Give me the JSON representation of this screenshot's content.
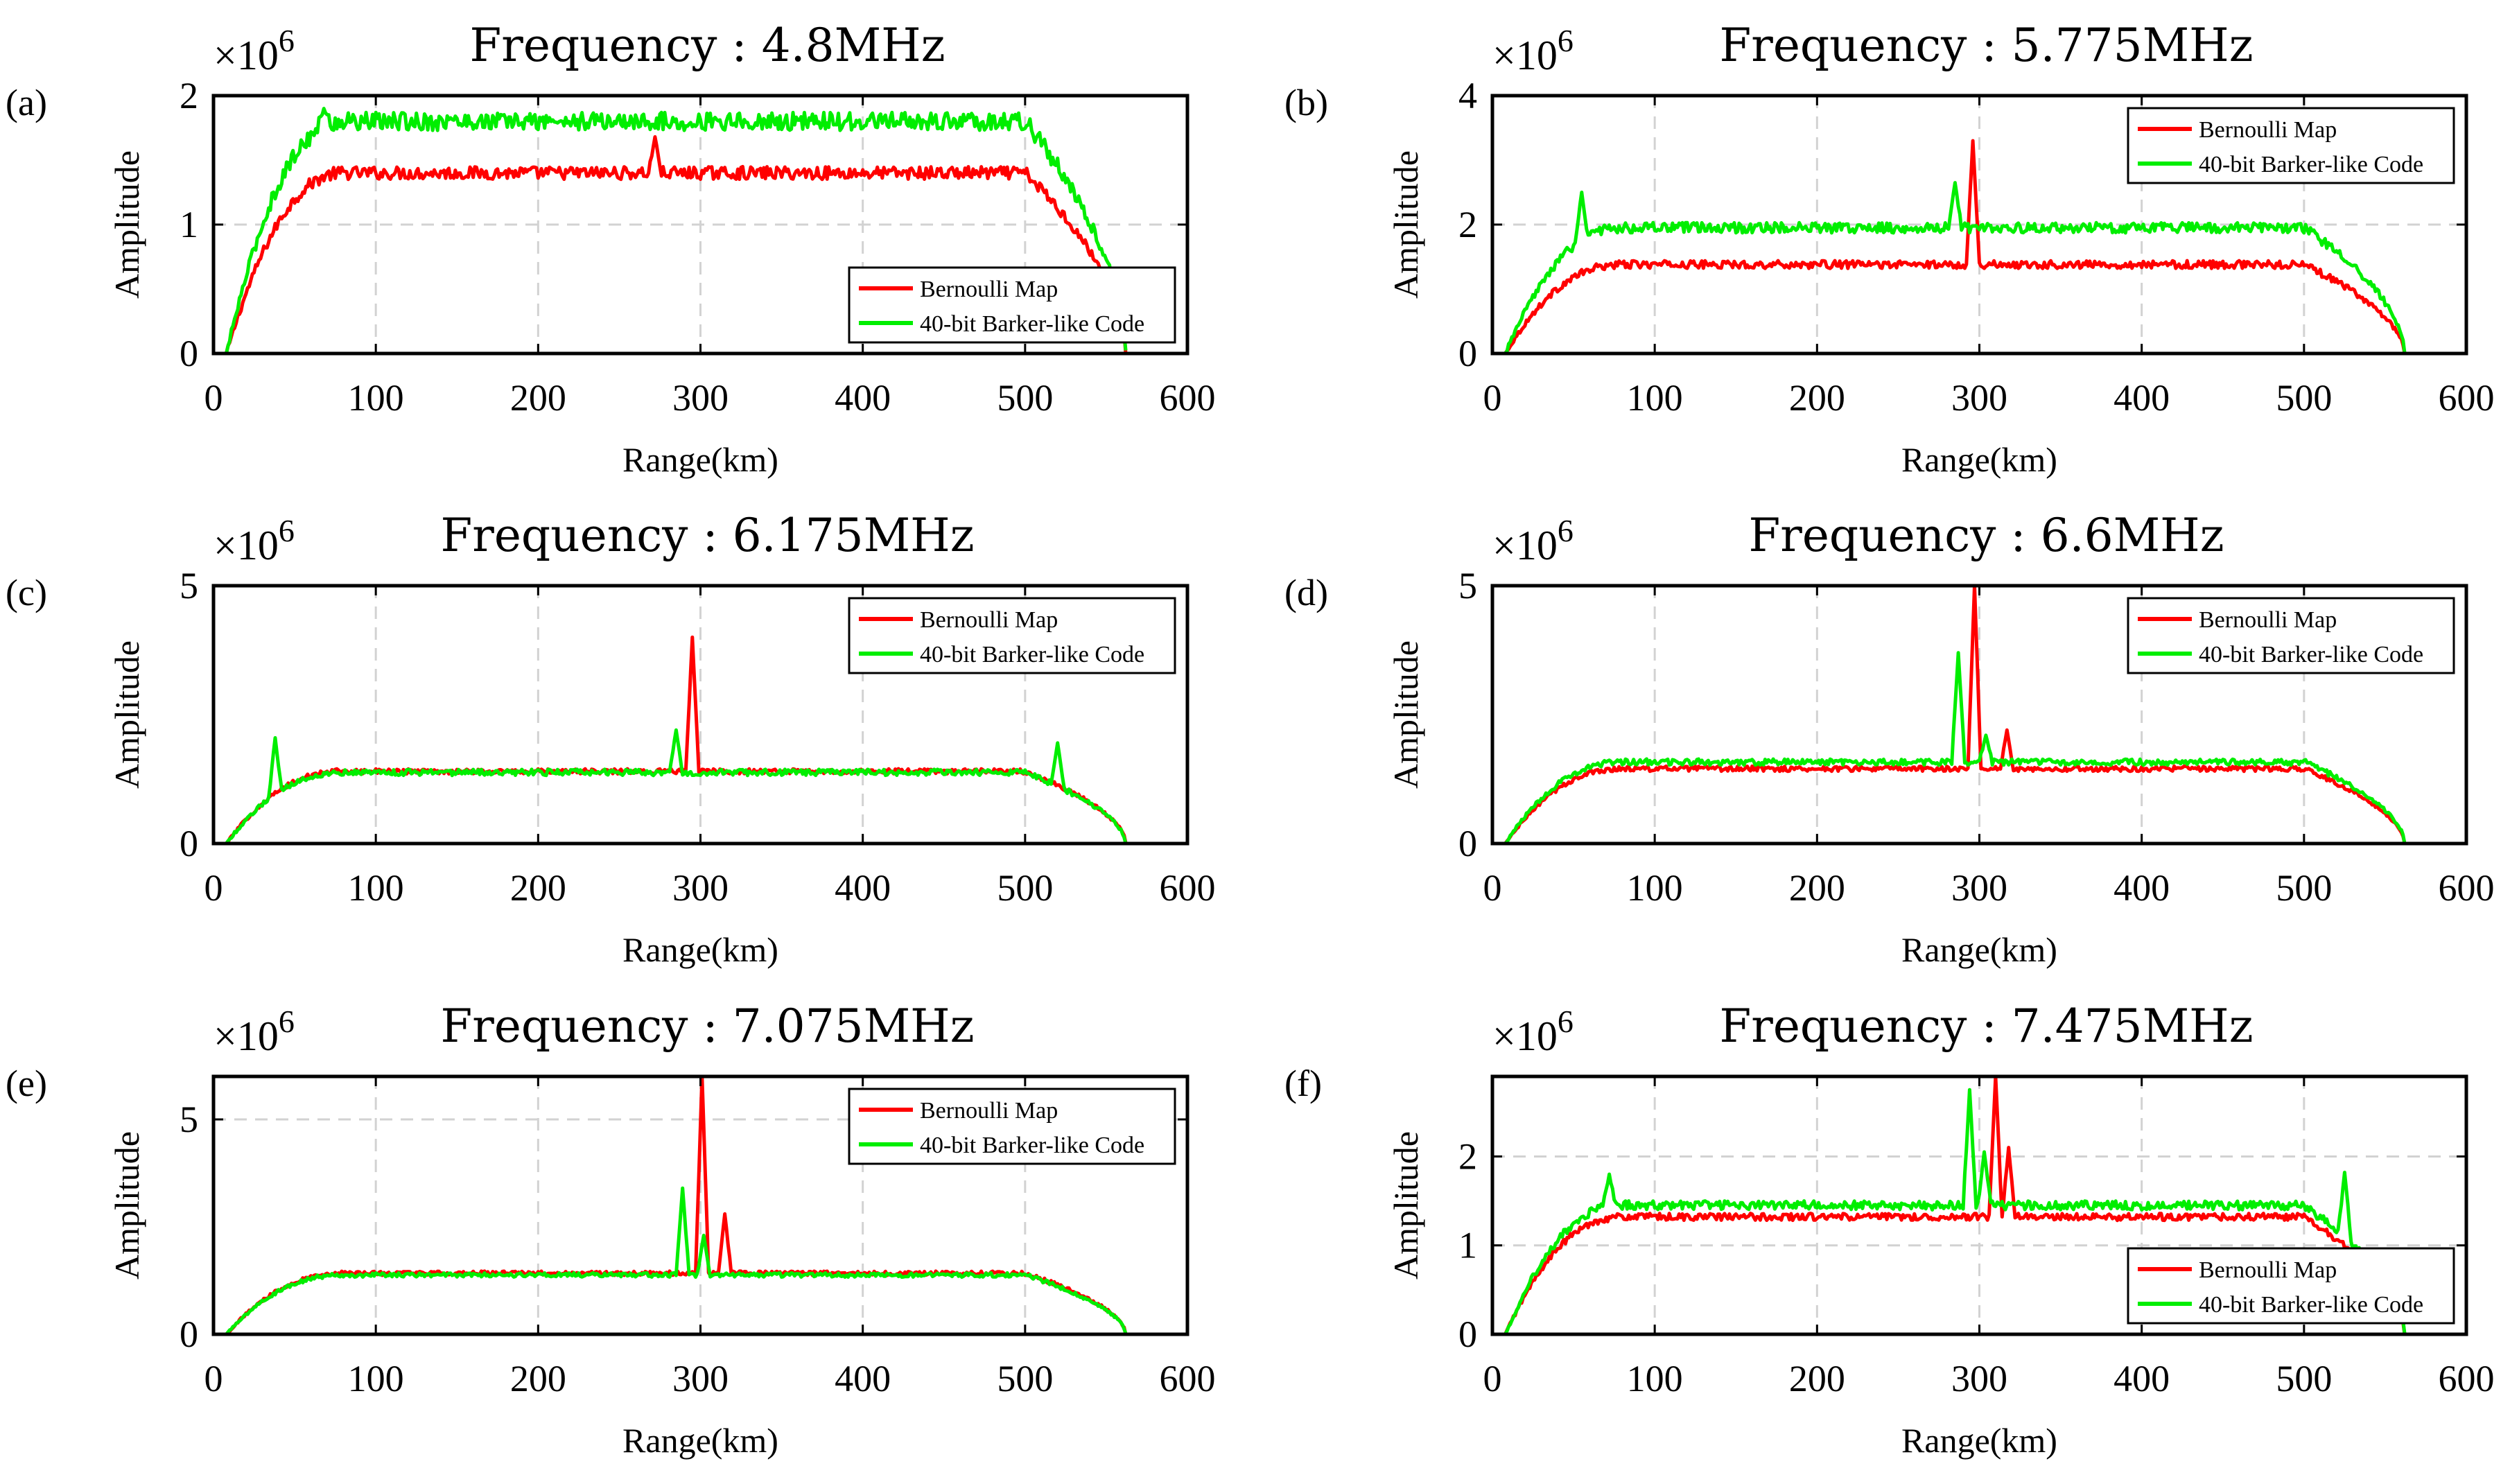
{
  "figure": {
    "colors": {
      "bernoulli": "#ff0000",
      "barker": "#00ee00"
    },
    "multiplier_base": "×10",
    "multiplier_exp": "6"
  },
  "chart_data": [
    {
      "panel": "(a)",
      "type": "line",
      "title": "Frequency : 4.8MHz",
      "xlabel": "Range(km)",
      "ylabel": "Amplitude",
      "xlim": [
        0,
        600
      ],
      "ylim": [
        0,
        2
      ],
      "xticks": [
        0,
        100,
        200,
        300,
        400,
        500,
        600
      ],
      "yticks": [
        0,
        1,
        2
      ],
      "legend_position": "bottom-right",
      "series": [
        {
          "name": "Bernoulli Map",
          "plateau": 1.4,
          "noise": 0.05,
          "spikes": [
            [
              272,
              1.68
            ]
          ]
        },
        {
          "name": "40-bit Barker-like Code",
          "plateau": 1.8,
          "noise": 0.07,
          "spikes": [
            [
              68,
              1.9
            ]
          ]
        }
      ]
    },
    {
      "panel": "(b)",
      "type": "line",
      "title": "Frequency : 5.775MHz",
      "xlabel": "Range(km)",
      "ylabel": "Amplitude",
      "xlim": [
        0,
        600
      ],
      "ylim": [
        0,
        4
      ],
      "xticks": [
        0,
        100,
        200,
        300,
        400,
        500,
        600
      ],
      "yticks": [
        0,
        2,
        4
      ],
      "legend_position": "top-right",
      "series": [
        {
          "name": "Bernoulli Map",
          "plateau": 1.38,
          "noise": 0.06,
          "spikes": [
            [
              296,
              3.3
            ]
          ]
        },
        {
          "name": "40-bit Barker-like Code",
          "plateau": 1.95,
          "noise": 0.08,
          "spikes": [
            [
              55,
              2.5
            ],
            [
              285,
              2.65
            ]
          ]
        }
      ]
    },
    {
      "panel": "(c)",
      "type": "line",
      "title": "Frequency : 6.175MHz",
      "xlabel": "Range(km)",
      "ylabel": "Amplitude",
      "xlim": [
        0,
        600
      ],
      "ylim": [
        0,
        5
      ],
      "xticks": [
        0,
        100,
        200,
        300,
        400,
        500,
        600
      ],
      "yticks": [
        0,
        5
      ],
      "legend_position": "top-right",
      "series": [
        {
          "name": "Bernoulli Map",
          "plateau": 1.4,
          "noise": 0.05,
          "spikes": [
            [
              295,
              4.0
            ]
          ]
        },
        {
          "name": "40-bit Barker-like Code",
          "plateau": 1.38,
          "noise": 0.06,
          "spikes": [
            [
              38,
              2.05
            ],
            [
              285,
              2.2
            ],
            [
              520,
              1.95
            ]
          ]
        }
      ]
    },
    {
      "panel": "(d)",
      "type": "line",
      "title": "Frequency : 6.6MHz",
      "xlabel": "Range(km)",
      "ylabel": "Amplitude",
      "xlim": [
        0,
        600
      ],
      "ylim": [
        0,
        5
      ],
      "xticks": [
        0,
        100,
        200,
        300,
        400,
        500,
        600
      ],
      "yticks": [
        0,
        5
      ],
      "legend_position": "top-right",
      "series": [
        {
          "name": "Bernoulli Map",
          "plateau": 1.45,
          "noise": 0.05,
          "spikes": [
            [
              297,
              5.0
            ],
            [
              317,
              2.2
            ]
          ]
        },
        {
          "name": "40-bit Barker-like Code",
          "plateau": 1.58,
          "noise": 0.06,
          "spikes": [
            [
              287,
              3.7
            ],
            [
              304,
              2.1
            ]
          ]
        }
      ]
    },
    {
      "panel": "(e)",
      "type": "line",
      "title": "Frequency : 7.075MHz",
      "xlabel": "Range(km)",
      "ylabel": "Amplitude",
      "xlim": [
        0,
        600
      ],
      "ylim": [
        0,
        6
      ],
      "xticks": [
        0,
        100,
        200,
        300,
        400,
        500,
        600
      ],
      "yticks": [
        0,
        5
      ],
      "legend_position": "top-right",
      "series": [
        {
          "name": "Bernoulli Map",
          "plateau": 1.42,
          "noise": 0.05,
          "spikes": [
            [
              301,
              6.0
            ],
            [
              315,
              2.8
            ]
          ]
        },
        {
          "name": "40-bit Barker-like Code",
          "plateau": 1.38,
          "noise": 0.05,
          "spikes": [
            [
              289,
              3.4
            ],
            [
              302,
              2.3
            ]
          ]
        }
      ]
    },
    {
      "panel": "(f)",
      "type": "line",
      "title": "Frequency : 7.475MHz",
      "xlabel": "Range(km)",
      "ylabel": "Amplitude",
      "xlim": [
        0,
        600
      ],
      "ylim": [
        0,
        2.9
      ],
      "xticks": [
        0,
        100,
        200,
        300,
        400,
        500,
        600
      ],
      "yticks": [
        0,
        1,
        2
      ],
      "legend_position": "bottom-right",
      "series": [
        {
          "name": "Bernoulli Map",
          "plateau": 1.32,
          "noise": 0.04,
          "spikes": [
            [
              310,
              2.9
            ],
            [
              318,
              2.1
            ]
          ]
        },
        {
          "name": "40-bit Barker-like Code",
          "plateau": 1.45,
          "noise": 0.05,
          "spikes": [
            [
              72,
              1.8
            ],
            [
              294,
              2.75
            ],
            [
              303,
              2.05
            ],
            [
              525,
              1.82
            ]
          ]
        }
      ]
    }
  ]
}
